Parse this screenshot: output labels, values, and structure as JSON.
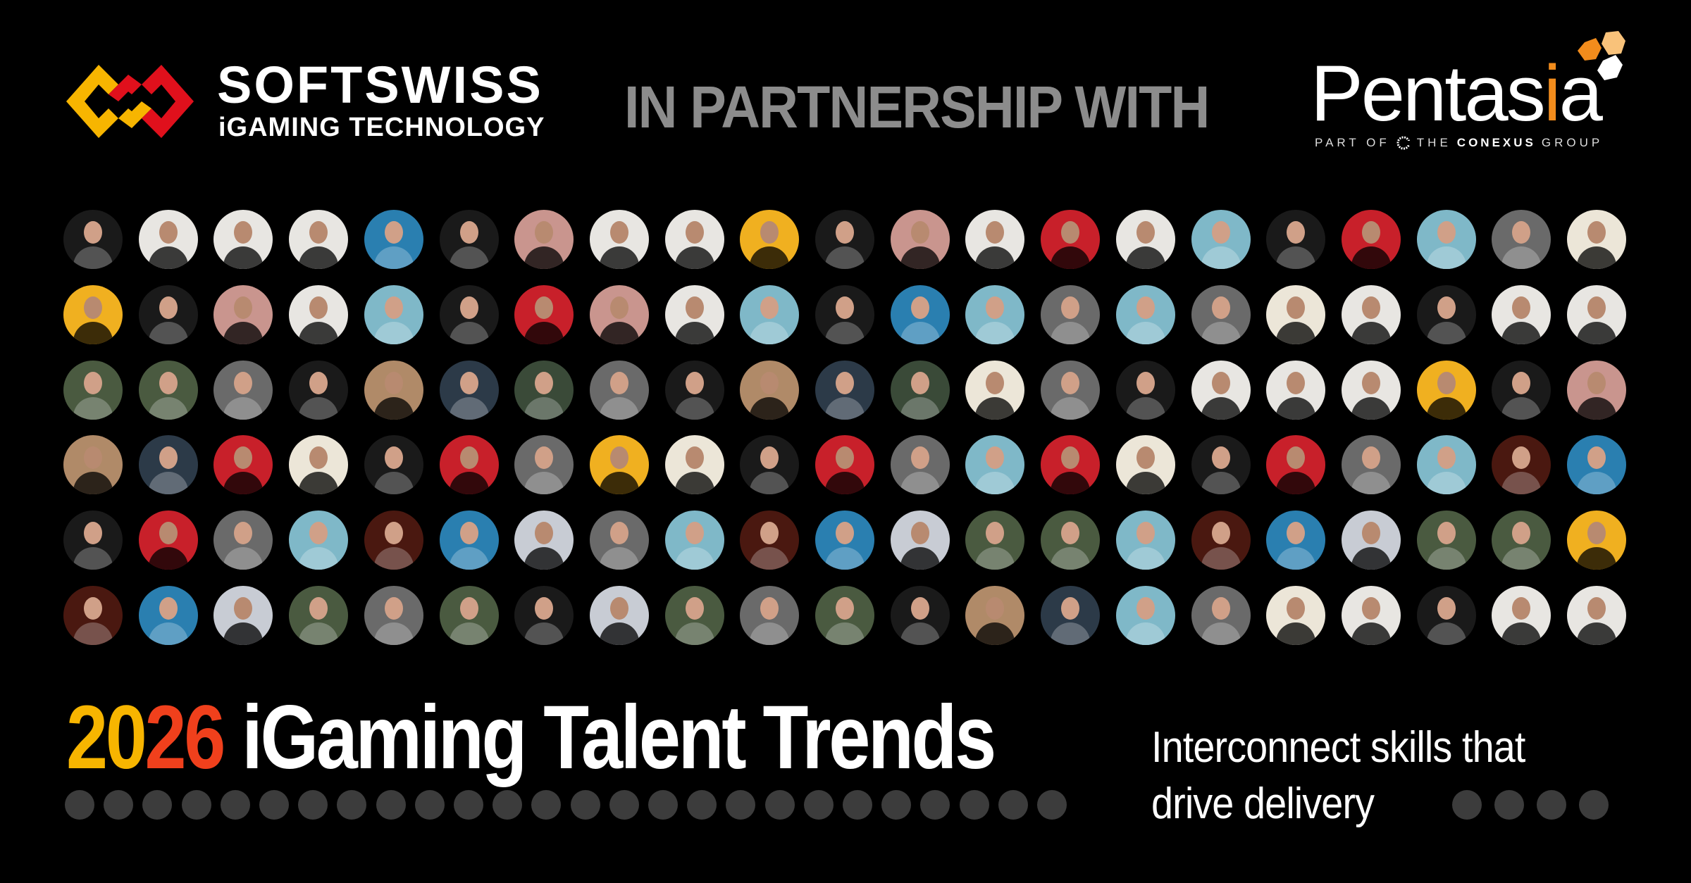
{
  "header": {
    "brand_name": "SOFTSWISS",
    "brand_tagline": "iGAMING TECHNOLOGY",
    "partnership_text": "IN PARTNERSHIP WITH",
    "partner_name_main": "Pentas",
    "partner_name_accent": "i",
    "partner_name_end": "a",
    "partner_sub_prefix": "PART OF",
    "partner_sub_the": "THE",
    "partner_sub_group_name": "CONEXUS",
    "partner_sub_suffix": "GROUP"
  },
  "colors": {
    "background": "#000000",
    "softswiss_yellow": "#f7b500",
    "softswiss_red": "#e0101c",
    "pentasia_orange": "#f28c1c",
    "partnership_gray": "#8c8c8c",
    "dot_gray": "#3c3c3c"
  },
  "avatar_grid": {
    "palette": {
      "d": "#1a1a1a",
      "w": "#e8e6e2",
      "b": "#2a7fb0",
      "p": "#c9958e",
      "y": "#f0b020",
      "r": "#c8202a",
      "t": "#7fb8c8",
      "g": "#6a6a6a",
      "c": "#ece6d8",
      "n": "#b08a68",
      "k": "#2c3a48",
      "e": "#4a5a40",
      "h": "#3a4a38",
      "x": "#4a1810",
      "l": "#c8ccd4"
    },
    "rows": [
      "dwwwbdpwwydpwrwtdrtgc",
      "ydpwtdrpwtdbtgtgcwdww",
      "eegdnkhgdnkhcgdwwwydp",
      "nkrcdrgycdrgtrcdrgtxb",
      "drgtxblgtxbleetxbleey",
      "xblegedlegednktgcwdww"
    ]
  },
  "title": {
    "year_part1": "20",
    "year_part2": "26",
    "rest": " iGaming Talent Trends"
  },
  "subtitle": {
    "line1": "Interconnect skills that",
    "line2": "drive delivery"
  },
  "decor": {
    "left_dot_count": 26,
    "right_dot_count": 4
  }
}
